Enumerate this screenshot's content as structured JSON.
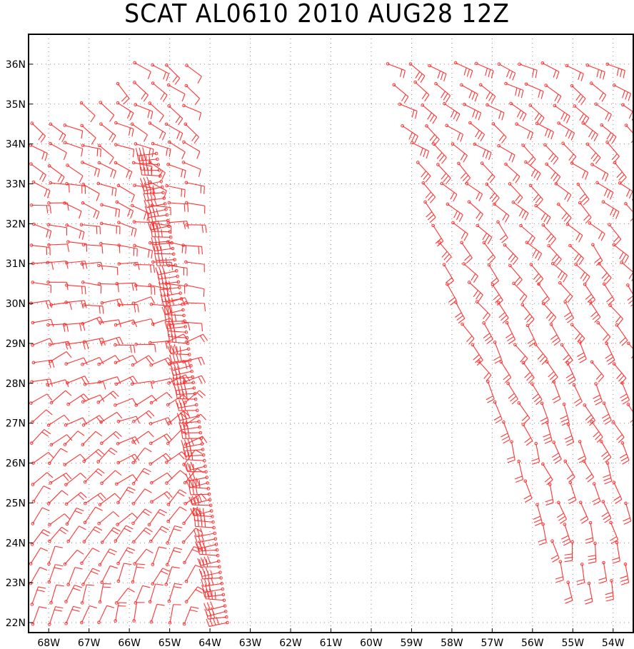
{
  "title": "SCAT AL0610 2010 AUG28 12Z",
  "colors": {
    "barb": "#ff3333",
    "grid": "#888888",
    "frame": "#000000"
  },
  "map": {
    "lon_range": [
      -68.5,
      -53.5
    ],
    "lat_range": [
      21.75,
      36.75
    ],
    "lon_ticks": [
      {
        "value": -68,
        "label": "68W"
      },
      {
        "value": -67,
        "label": "67W"
      },
      {
        "value": -66,
        "label": "66W"
      },
      {
        "value": -65,
        "label": "65W"
      },
      {
        "value": -64,
        "label": "64W"
      },
      {
        "value": -63,
        "label": "63W"
      },
      {
        "value": -62,
        "label": "62W"
      },
      {
        "value": -61,
        "label": "61W"
      },
      {
        "value": -60,
        "label": "60W"
      },
      {
        "value": -59,
        "label": "59W"
      },
      {
        "value": -58,
        "label": "58W"
      },
      {
        "value": -57,
        "label": "57W"
      },
      {
        "value": -56,
        "label": "56W"
      },
      {
        "value": -55,
        "label": "55W"
      },
      {
        "value": -54,
        "label": "54W"
      }
    ],
    "lat_ticks": [
      {
        "value": 36,
        "label": "36N"
      },
      {
        "value": 35,
        "label": "35N"
      },
      {
        "value": 34,
        "label": "34N"
      },
      {
        "value": 33,
        "label": "33N"
      },
      {
        "value": 32,
        "label": "32N"
      },
      {
        "value": 31,
        "label": "31N"
      },
      {
        "value": 30,
        "label": "30N"
      },
      {
        "value": 29,
        "label": "29N"
      },
      {
        "value": 28,
        "label": "28N"
      },
      {
        "value": 27,
        "label": "27N"
      },
      {
        "value": 26,
        "label": "26N"
      },
      {
        "value": 25,
        "label": "25N"
      },
      {
        "value": 24,
        "label": "24N"
      },
      {
        "value": 23,
        "label": "23N"
      },
      {
        "value": 22,
        "label": "22N"
      }
    ],
    "grid": true
  }
}
